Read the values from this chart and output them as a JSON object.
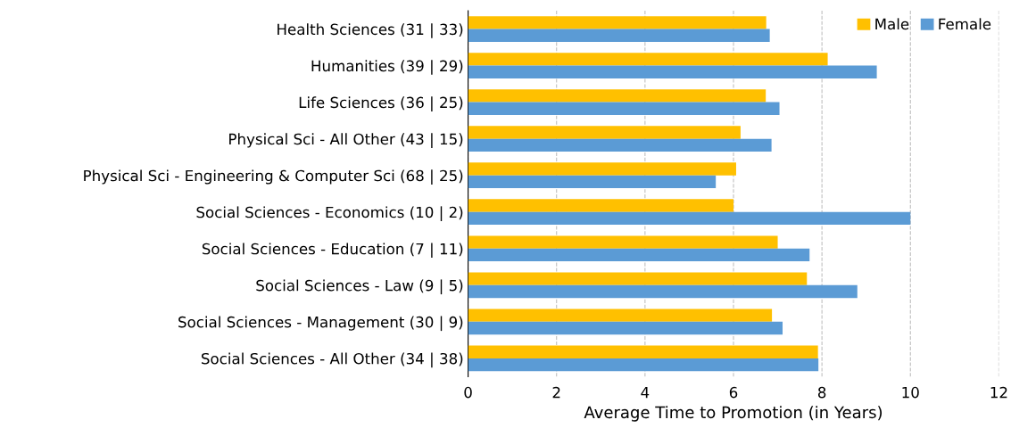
{
  "chart_data": {
    "type": "bar",
    "orientation": "horizontal",
    "xlabel": "Average Time to Promotion (in Years)",
    "categories": [
      "Health Sciences (31 | 33)",
      "Humanities (39 | 29)",
      "Life Sciences (36 | 25)",
      "Physical Sci - All Other (43 | 15)",
      "Physical Sci - Engineering & Computer Sci (68 | 25)",
      "Social Sciences - Economics (10 | 2)",
      "Social Sciences - Education (7 | 11)",
      "Social Sciences - Law (9 | 5)",
      "Social Sciences - Management (30 | 9)",
      "Social Sciences - All Other (34 | 38)"
    ],
    "series": [
      {
        "name": "Male",
        "color": "#ffc000",
        "values": [
          6.74,
          8.13,
          6.73,
          6.16,
          6.06,
          6.0,
          7.0,
          7.66,
          6.87,
          7.91
        ]
      },
      {
        "name": "Female",
        "color": "#5b9bd5",
        "values": [
          6.82,
          9.24,
          7.04,
          6.86,
          5.6,
          10.0,
          7.72,
          8.8,
          7.11,
          7.92
        ]
      }
    ],
    "xlim": [
      0,
      12
    ],
    "xticks": [
      0,
      2,
      4,
      6,
      8,
      10,
      12
    ],
    "grid": "x",
    "line_style": "dashed",
    "legend": "top right"
  }
}
